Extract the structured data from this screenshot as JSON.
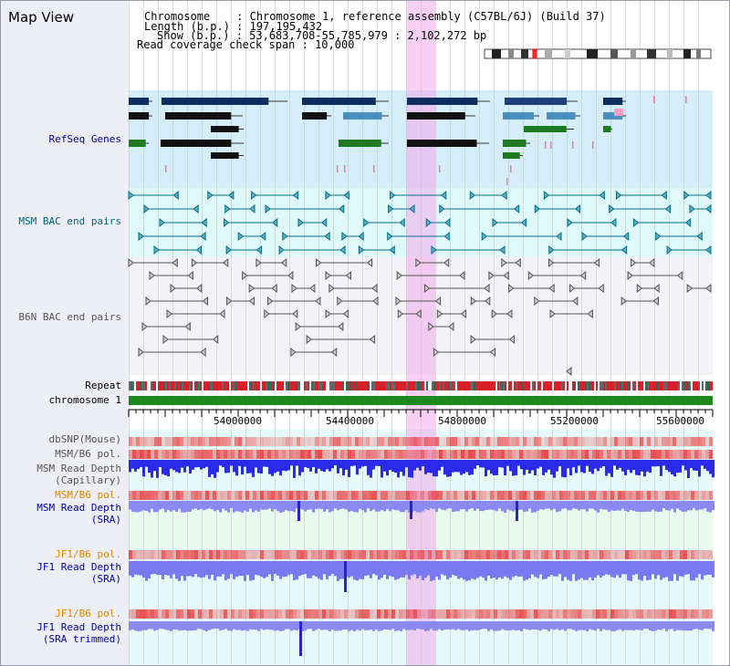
{
  "window": {
    "title": "Map View"
  },
  "info": {
    "chromosome_label": "Chromosome    : Chromosome 1, reference assembly (C57BL/6J) (Build 37)",
    "length_label": "Length (b.p.) : 197,195,432",
    "show_label": "Show (b.p.) : 53,683,708-55,785,979 : 2,102,272 bp",
    "coverage_label": "Read coverage check span : 10,000"
  },
  "tracks": {
    "refseq": "RefSeq Genes",
    "msm_bac": "MSM BAC end pairs",
    "b6n_bac": "B6N BAC end pairs",
    "repeat": "Repeat",
    "chromosome": "chromosome 1",
    "dbsnp": "dbSNP(Mouse)",
    "msm_b6_pol_1": "MSM/B6 pol.",
    "msm_read_depth_cap_1": "MSM Read Depth",
    "msm_read_depth_cap_2": "(Capillary)",
    "msm_b6_pol_2": "MSM/B6 pol.",
    "msm_read_depth_sra_1": "MSM Read Depth",
    "msm_read_depth_sra_2": "(SRA)",
    "jf1_b6_pol_1": "JF1/B6 pol.",
    "jf1_read_depth_sra_1": "JF1 Read Depth",
    "jf1_read_depth_sra_2": "(SRA)",
    "jf1_b6_pol_2": "JF1/B6 pol.",
    "jf1_read_depth_trim_1": "JF1 Read Depth",
    "jf1_read_depth_trim_2": "(SRA trimmed)"
  },
  "axis": {
    "ticks": [
      "54000000",
      "54400000",
      "54800000",
      "55200000",
      "55600000"
    ]
  },
  "colors": {
    "refseq_bg": "#d8f0fa",
    "msm_bg": "#ddf8fa",
    "b6n_bg": "#f4f4f8",
    "chromosome_bar": "#1e8a1e",
    "highlight": "#f0aaeb",
    "label_blue": "#0000aa",
    "label_teal": "#006677",
    "label_orange": "#e08a00"
  }
}
